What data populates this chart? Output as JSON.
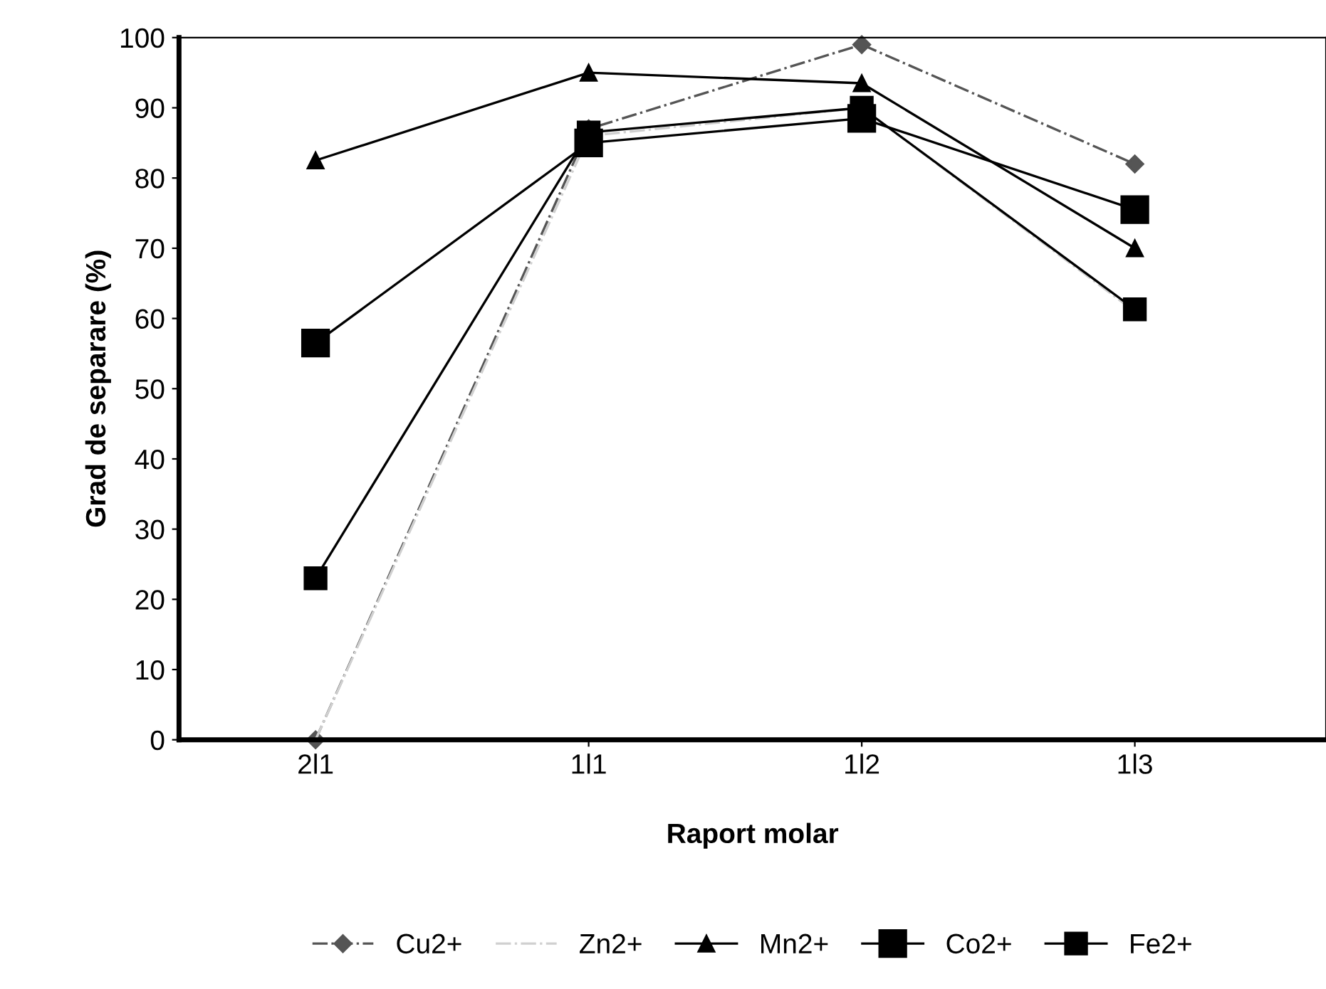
{
  "chart_data": {
    "type": "line",
    "xlabel": "Raport molar",
    "ylabel": "Grad de separare (%)",
    "categories": [
      "2l1",
      "1l1",
      "1l2",
      "1l3"
    ],
    "series": [
      {
        "name": "Cu2+",
        "color": "#555555",
        "marker": "diamond",
        "line_style": "dashed",
        "values": [
          0,
          87,
          99,
          82
        ]
      },
      {
        "name": "Zn2+",
        "color": "#d0d0d0",
        "marker": "none",
        "line_style": "dashed",
        "values": [
          0,
          86,
          90,
          61
        ]
      },
      {
        "name": "Mn2+",
        "color": "#000000",
        "marker": "triangle",
        "line_style": "solid",
        "values": [
          82.5,
          95,
          93.5,
          70
        ]
      },
      {
        "name": "Co2+",
        "color": "#000000",
        "marker": "square",
        "line_style": "solid",
        "values": [
          56.5,
          85,
          88.5,
          75.5
        ]
      },
      {
        "name": "Fe2+",
        "color": "#000000",
        "marker": "square",
        "line_style": "solid",
        "values": [
          23,
          86.5,
          90,
          61.3
        ]
      }
    ],
    "ylim": [
      0,
      100
    ],
    "yticks": [
      0,
      10,
      20,
      30,
      40,
      50,
      60,
      70,
      80,
      90,
      100
    ],
    "grid": false,
    "legend": "bottom"
  }
}
